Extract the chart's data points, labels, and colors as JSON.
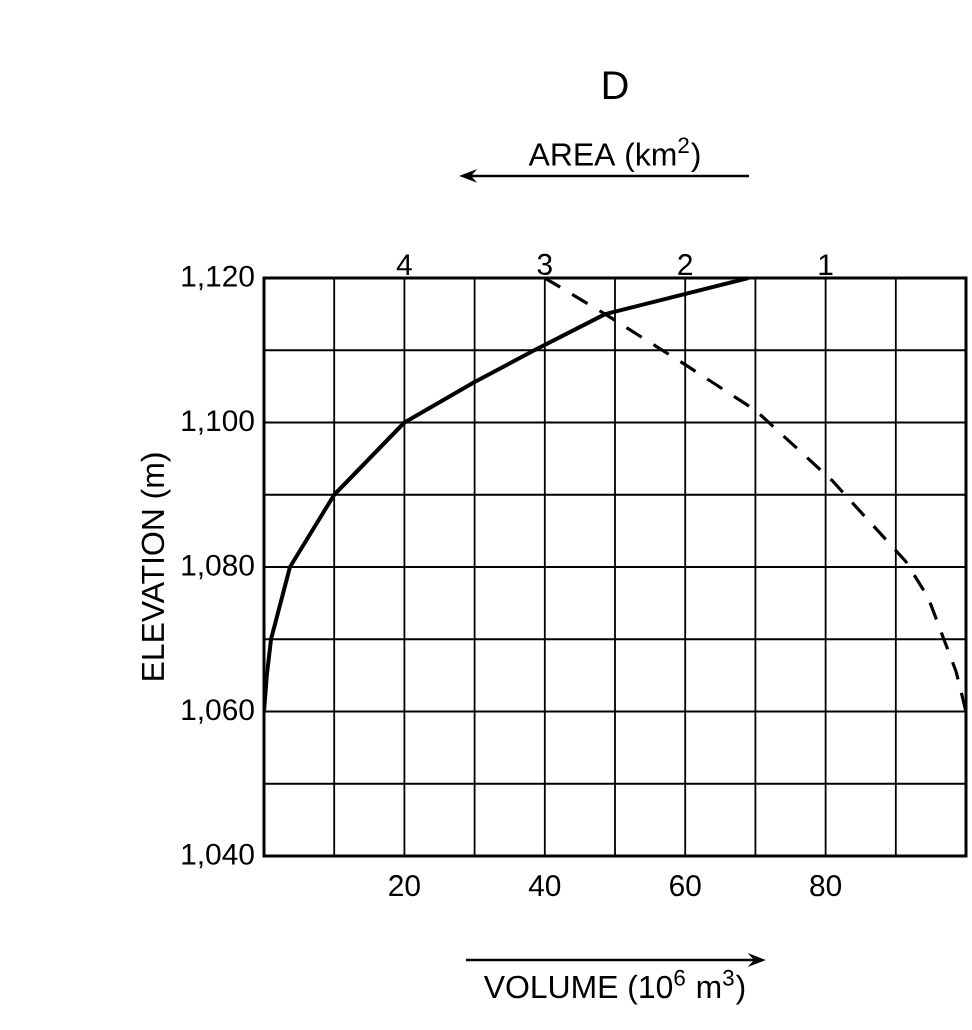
{
  "chart_data": {
    "type": "line",
    "title": "D",
    "xlabel": "VOLUME (10$^{6}$ m$^{3}$)",
    "x2label": "AREA (km$^{2}$)",
    "ylabel": "ELEVATION (m)",
    "xlim": [
      0,
      100
    ],
    "x2lim": [
      5,
      0
    ],
    "ylim": [
      1040,
      1120
    ],
    "xticks": [
      {
        "value": 10,
        "label": null
      },
      20,
      {
        "value": 30,
        "label": null
      },
      40,
      {
        "value": 50,
        "label": null
      },
      60,
      {
        "value": 70,
        "label": null
      },
      80,
      {
        "value": 90,
        "label": null
      }
    ],
    "x2ticks": [
      4,
      3,
      2,
      1
    ],
    "yticks": [
      {
        "value": 1040,
        "label": "1,040"
      },
      {
        "value": 1050,
        "label": null
      },
      {
        "value": 1060,
        "label": "1,060"
      },
      {
        "value": 1070,
        "label": null
      },
      {
        "value": 1080,
        "label": "1,080"
      },
      {
        "value": 1090,
        "label": null
      },
      {
        "value": 1100,
        "label": "1,100"
      },
      {
        "value": 1110,
        "label": null
      },
      {
        "value": 1120,
        "label": "1,120"
      }
    ],
    "grid": true,
    "marker": "none",
    "series": [
      {
        "color": "#000000",
        "line_style": "solid",
        "x": [
          0,
          0.4,
          1,
          3.7,
          10,
          20,
          30,
          38.5,
          48.6,
          69
        ],
        "values": [
          1060,
          1065,
          1070,
          1080,
          1090,
          1100,
          1105.6,
          1110,
          1115,
          1120
        ]
      },
      {
        "color": "#000000",
        "line_style": "dashed",
        "axis": "x2",
        "x": [
          3.0,
          2.57,
          2.0,
          1.5,
          0.95,
          0.43,
          0.27,
          0.07,
          0
        ],
        "values": [
          1120,
          1115,
          1108,
          1101.7,
          1091.9,
          1080.8,
          1075.8,
          1065.5,
          1060
        ]
      }
    ]
  }
}
